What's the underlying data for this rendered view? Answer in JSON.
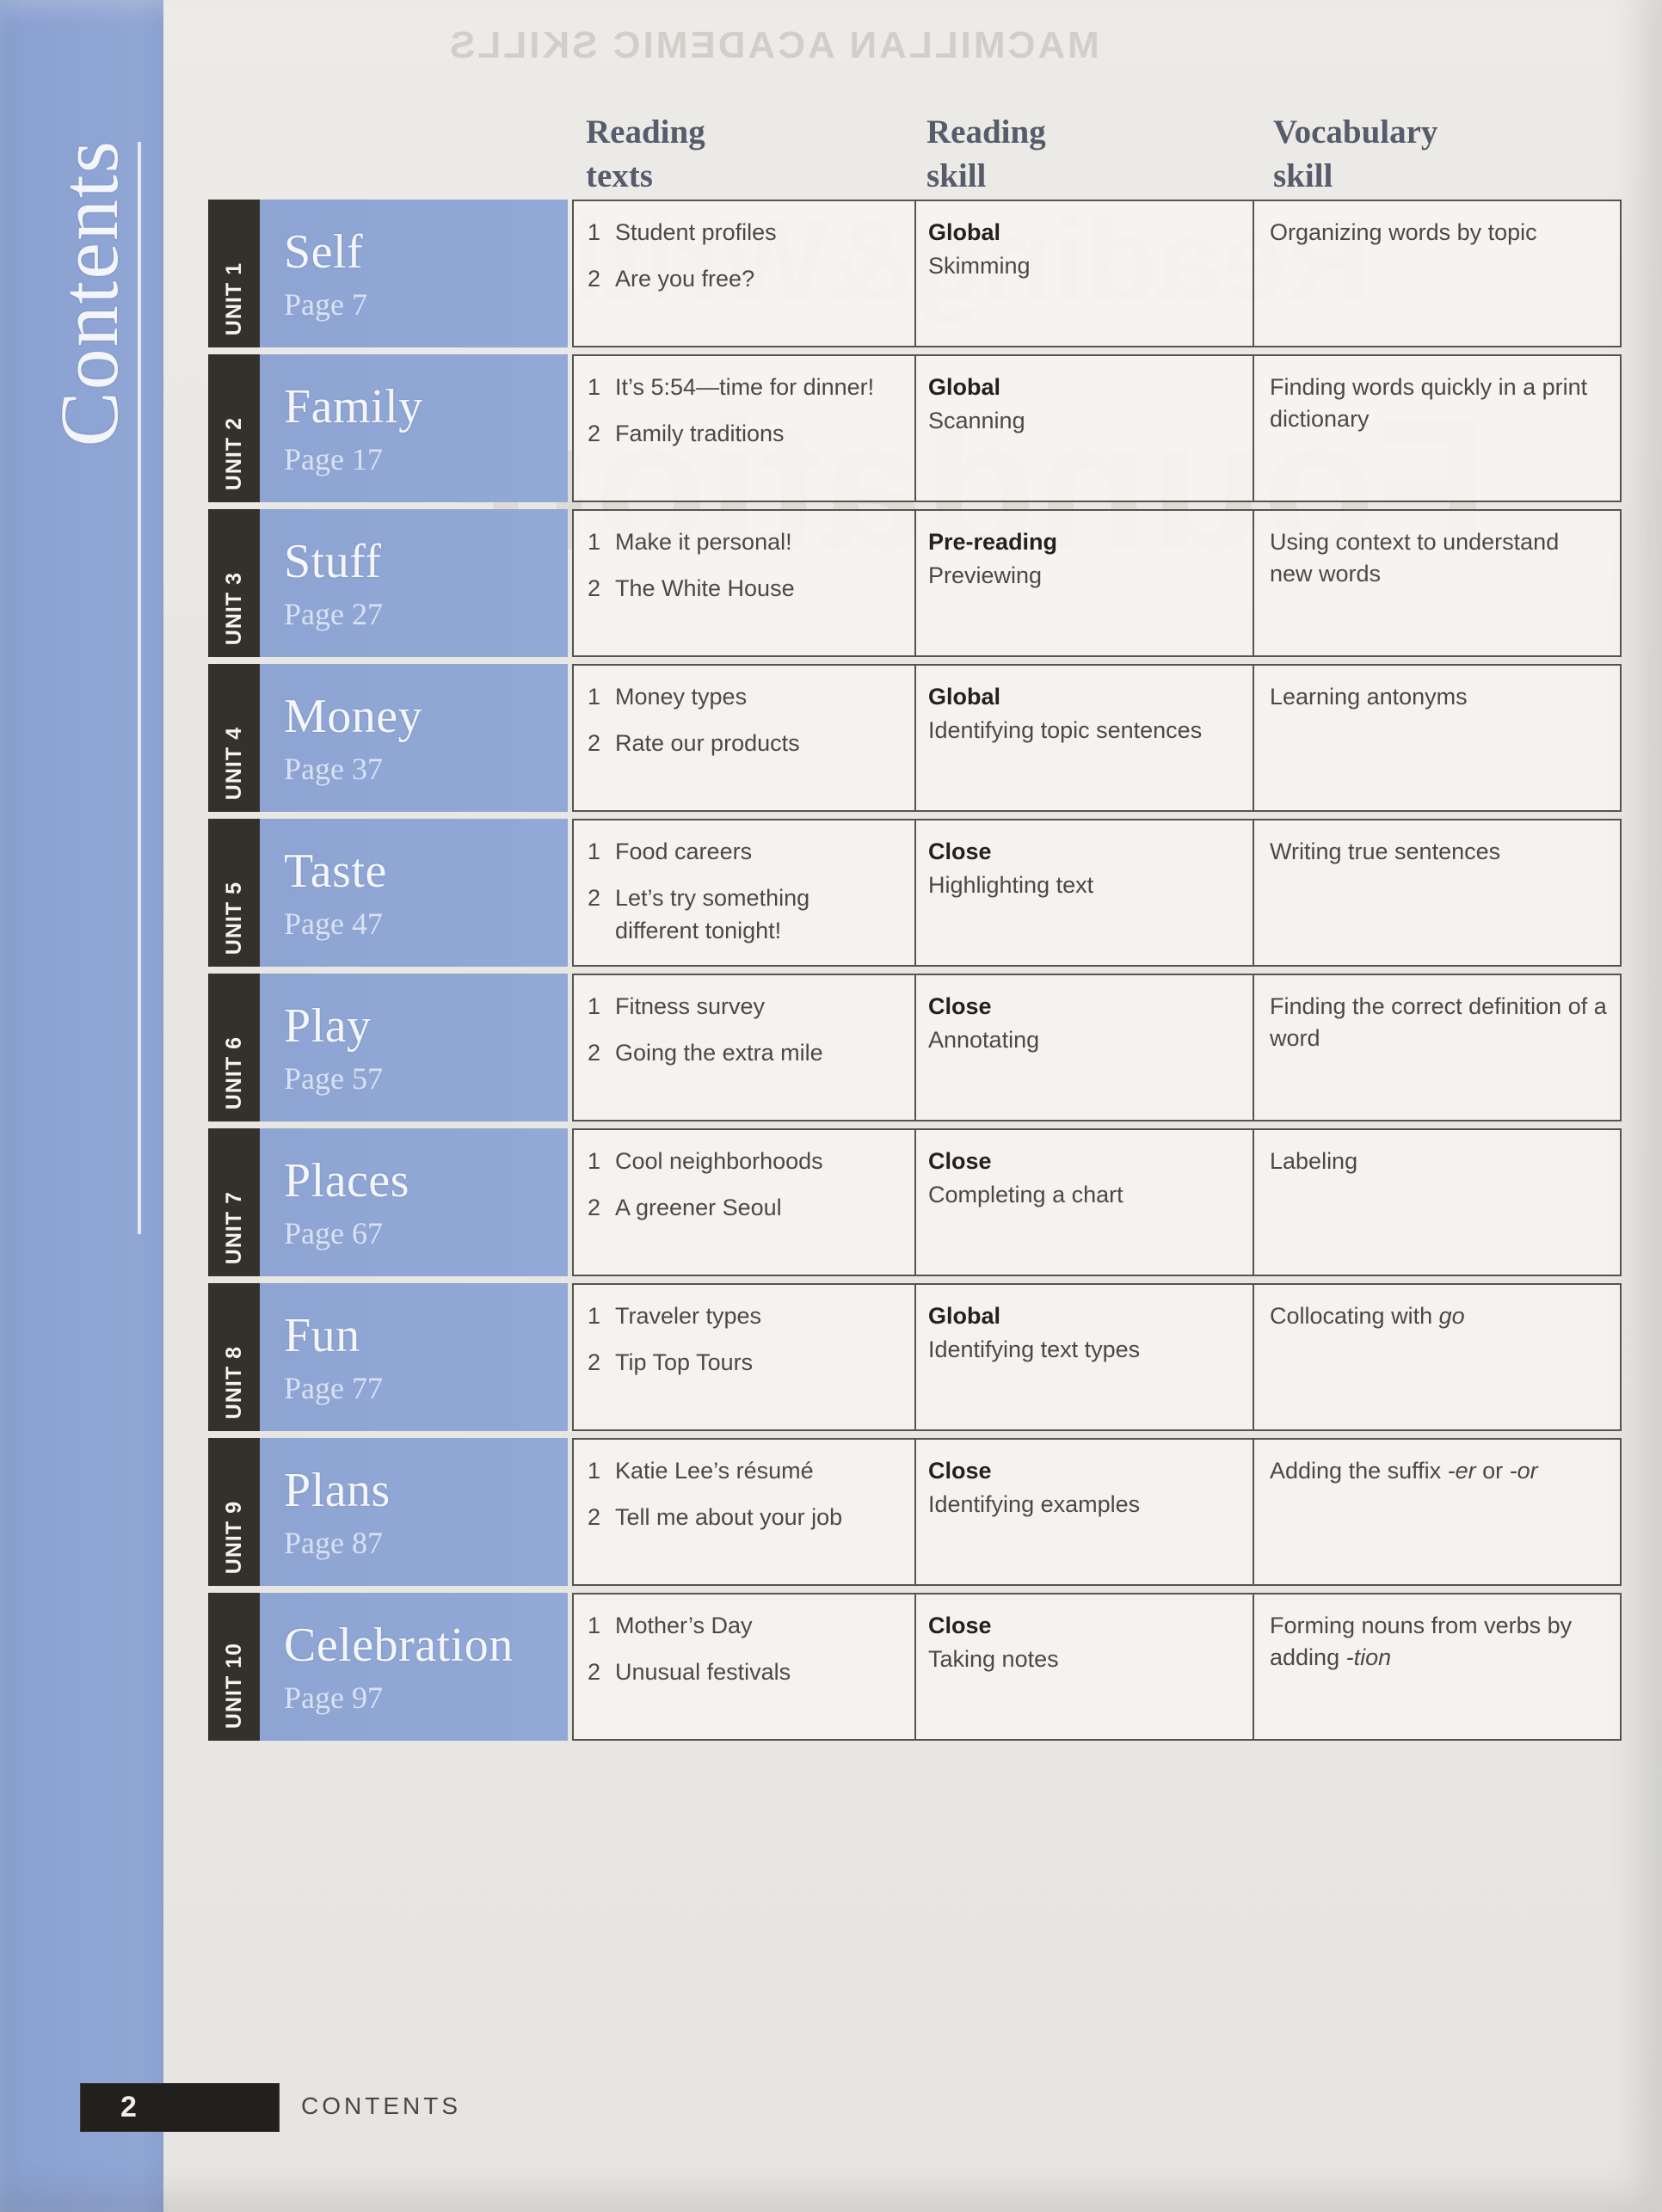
{
  "sidebar": {
    "title": "Contents"
  },
  "watermark": {
    "line1": "MACMILLAN ACADEMIC SKILLS",
    "line2": "Reading&Writing",
    "line3": "Foundation"
  },
  "table": {
    "columns": [
      {
        "label": "Reading\ntexts"
      },
      {
        "label": "Reading\nskill"
      },
      {
        "label": "Vocabulary\nskill"
      }
    ],
    "units": [
      {
        "tab": "UNIT 1",
        "name": "Self",
        "page": "Page 7",
        "texts": [
          {
            "n": "1",
            "t": "Student profiles"
          },
          {
            "n": "2",
            "t": "Are you free?"
          }
        ],
        "skill": {
          "type": "Global",
          "detail": "Skimming"
        },
        "vocab": [
          {
            "t": "Organizing words by topic"
          }
        ]
      },
      {
        "tab": "UNIT 2",
        "name": "Family",
        "page": "Page 17",
        "texts": [
          {
            "n": "1",
            "t": "It’s 5:54—time for dinner!"
          },
          {
            "n": "2",
            "t": "Family traditions"
          }
        ],
        "skill": {
          "type": "Global",
          "detail": "Scanning"
        },
        "vocab": [
          {
            "t": "Finding words quickly in a print dictionary"
          }
        ]
      },
      {
        "tab": "UNIT 3",
        "name": "Stuff",
        "page": "Page 27",
        "texts": [
          {
            "n": "1",
            "t": "Make it personal!"
          },
          {
            "n": "2",
            "t": "The White House"
          }
        ],
        "skill": {
          "type": "Pre-reading",
          "detail": "Previewing"
        },
        "vocab": [
          {
            "t": "Using context to understand new words"
          }
        ]
      },
      {
        "tab": "UNIT 4",
        "name": "Money",
        "page": "Page 37",
        "texts": [
          {
            "n": "1",
            "t": "Money types"
          },
          {
            "n": "2",
            "t": "Rate our products"
          }
        ],
        "skill": {
          "type": "Global",
          "detail": "Identifying topic sentences"
        },
        "vocab": [
          {
            "t": "Learning antonyms"
          }
        ]
      },
      {
        "tab": "UNIT 5",
        "name": "Taste",
        "page": "Page 47",
        "texts": [
          {
            "n": "1",
            "t": "Food careers"
          },
          {
            "n": "2",
            "t": "Let’s try something different tonight!"
          }
        ],
        "skill": {
          "type": "Close",
          "detail": "Highlighting text"
        },
        "vocab": [
          {
            "t": "Writing true sentences"
          }
        ]
      },
      {
        "tab": "UNIT 6",
        "name": "Play",
        "page": "Page 57",
        "texts": [
          {
            "n": "1",
            "t": "Fitness survey"
          },
          {
            "n": "2",
            "t": "Going the extra mile"
          }
        ],
        "skill": {
          "type": "Close",
          "detail": "Annotating"
        },
        "vocab": [
          {
            "t": "Finding the correct definition of a word"
          }
        ]
      },
      {
        "tab": "UNIT 7",
        "name": "Places",
        "page": "Page 67",
        "texts": [
          {
            "n": "1",
            "t": "Cool neighborhoods"
          },
          {
            "n": "2",
            "t": "A greener Seoul"
          }
        ],
        "skill": {
          "type": "Close",
          "detail": "Completing a chart"
        },
        "vocab": [
          {
            "t": "Labeling"
          }
        ]
      },
      {
        "tab": "UNIT 8",
        "name": "Fun",
        "page": "Page 77",
        "texts": [
          {
            "n": "1",
            "t": "Traveler types"
          },
          {
            "n": "2",
            "t": "Tip Top Tours"
          }
        ],
        "skill": {
          "type": "Global",
          "detail": "Identifying text types"
        },
        "vocab": [
          {
            "t": "Collocating with "
          },
          {
            "t": "go",
            "italic": true
          }
        ]
      },
      {
        "tab": "UNIT 9",
        "name": "Plans",
        "page": "Page 87",
        "texts": [
          {
            "n": "1",
            "t": "Katie Lee’s résumé"
          },
          {
            "n": "2",
            "t": "Tell me about your job"
          }
        ],
        "skill": {
          "type": "Close",
          "detail": "Identifying examples"
        },
        "vocab": [
          {
            "t": "Adding the suffix "
          },
          {
            "t": "-er",
            "italic": true
          },
          {
            "t": " or "
          },
          {
            "t": "-or",
            "italic": true
          }
        ]
      },
      {
        "tab": "UNIT 10",
        "name": "Celebration",
        "page": "Page 97",
        "texts": [
          {
            "n": "1",
            "t": "Mother’s Day"
          },
          {
            "n": "2",
            "t": "Unusual festivals"
          }
        ],
        "skill": {
          "type": "Close",
          "detail": "Taking notes"
        },
        "vocab": [
          {
            "t": "Forming nouns from verbs by adding "
          },
          {
            "t": "-tion",
            "italic": true
          }
        ]
      }
    ]
  },
  "footer": {
    "page_number": "2",
    "label": "CONTENTS"
  },
  "colors": {
    "sidebar_blue": "#8ba1d1",
    "unit_box_blue": "#90a6d5",
    "unit_tab_dark": "#333129",
    "page_background": "#e9e7e3",
    "cell_background": "#f6f5f2",
    "cell_border": "#56544e",
    "header_text": "#575c6c",
    "body_text": "#4b4946",
    "footer_box_black": "#21201d"
  }
}
